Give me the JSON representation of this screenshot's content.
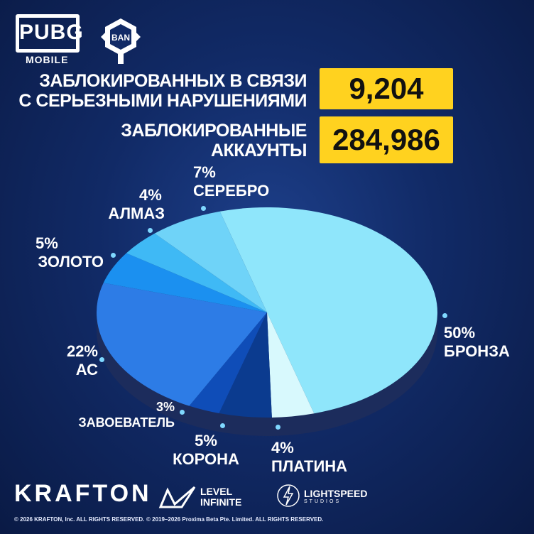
{
  "logos": {
    "pubg": "PUBG",
    "pubg_sub": "MOBILE",
    "ban": "BAN",
    "krafton": "KRAFTON",
    "level_infinite_1": "LEVEL",
    "level_infinite_2": "INFINITE",
    "lightspeed_1": "LIGHTSPEED",
    "lightspeed_2": "STUDIOS"
  },
  "stats": [
    {
      "label_line1": "ЗАБЛОКИРОВАННЫХ В СВЯЗИ",
      "label_line2": "С СЕРЬЕЗНЫМИ НАРУШЕНИЯМИ",
      "value": "9,204"
    },
    {
      "label_line1": "ЗАБЛОКИРОВАННЫЕ",
      "label_line2": "АККАУНТЫ",
      "value": "284,986"
    }
  ],
  "chart_data": {
    "type": "pie",
    "categories": [
      "БРОНЗА",
      "ПЛАТИНА",
      "КОРОНА",
      "ЗАВОЕВАТЕЛЬ",
      "АС",
      "ЗОЛОТО",
      "АЛМАЗ",
      "СЕРЕБРО"
    ],
    "values": [
      50,
      4,
      5,
      3,
      22,
      5,
      4,
      7
    ],
    "value_labels": [
      "50%",
      "4%",
      "5%",
      "3%",
      "22%",
      "5%",
      "4%",
      "7%"
    ],
    "colors": [
      "#8fe6fb",
      "#d8f9fd",
      "#0b3b8f",
      "#0f4db8",
      "#2d7ce6",
      "#1b90f0",
      "#3fb9f5",
      "#6fd3f8"
    ]
  },
  "footer": {
    "copyright_1": "© 2026 KRAFTON, Inc. ALL RIGHTS RESERVED.",
    "copyright_2": "© 2019–2026 Proxima Beta Pte. Limited. ALL RIGHTS RESERVED."
  }
}
